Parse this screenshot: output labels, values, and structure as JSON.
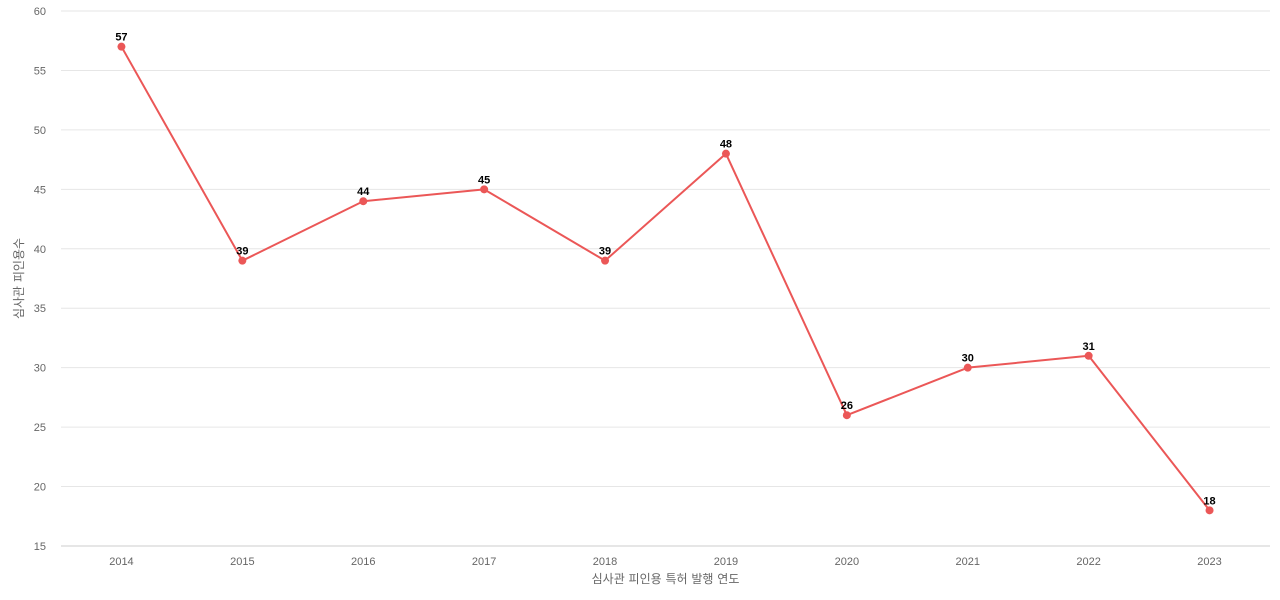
{
  "chart_data": {
    "type": "line",
    "title": "",
    "xlabel": "심사관 피인용 특허 발행 연도",
    "ylabel": "심사관 피인용수",
    "categories": [
      "2014",
      "2015",
      "2016",
      "2017",
      "2018",
      "2019",
      "2020",
      "2021",
      "2022",
      "2023"
    ],
    "series": [
      {
        "values": [
          57,
          39,
          44,
          45,
          39,
          48,
          26,
          30,
          31,
          18
        ],
        "color": "#eb5757"
      }
    ],
    "ylim": [
      15,
      60
    ],
    "yticks": [
      15,
      20,
      25,
      30,
      35,
      40,
      45,
      50,
      55,
      60
    ],
    "grid": true,
    "legend": "none",
    "data_labels": true
  }
}
